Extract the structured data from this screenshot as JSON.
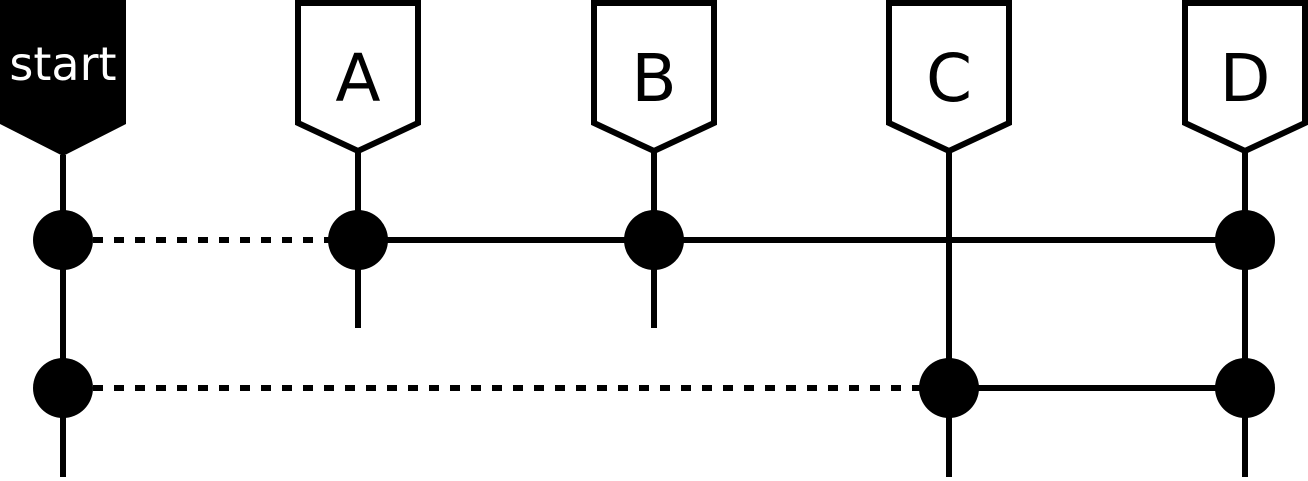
{
  "diagram": {
    "start_label": "start",
    "nodes": [
      {
        "id": "A",
        "label": "A"
      },
      {
        "id": "B",
        "label": "B"
      },
      {
        "id": "C",
        "label": "C"
      },
      {
        "id": "D",
        "label": "D"
      }
    ],
    "rows": [
      {
        "dotted_link": [
          "start",
          "A"
        ],
        "solid_links": [
          [
            "A",
            "B"
          ],
          [
            "B",
            "D"
          ]
        ],
        "dots": [
          "start",
          "A",
          "B",
          "D"
        ]
      },
      {
        "dotted_link": [
          "start",
          "C"
        ],
        "solid_links": [
          [
            "C",
            "D"
          ]
        ],
        "dots": [
          "start",
          "C",
          "D"
        ]
      }
    ],
    "colors": {
      "ink": "#000000",
      "paper": "#ffffff"
    }
  }
}
